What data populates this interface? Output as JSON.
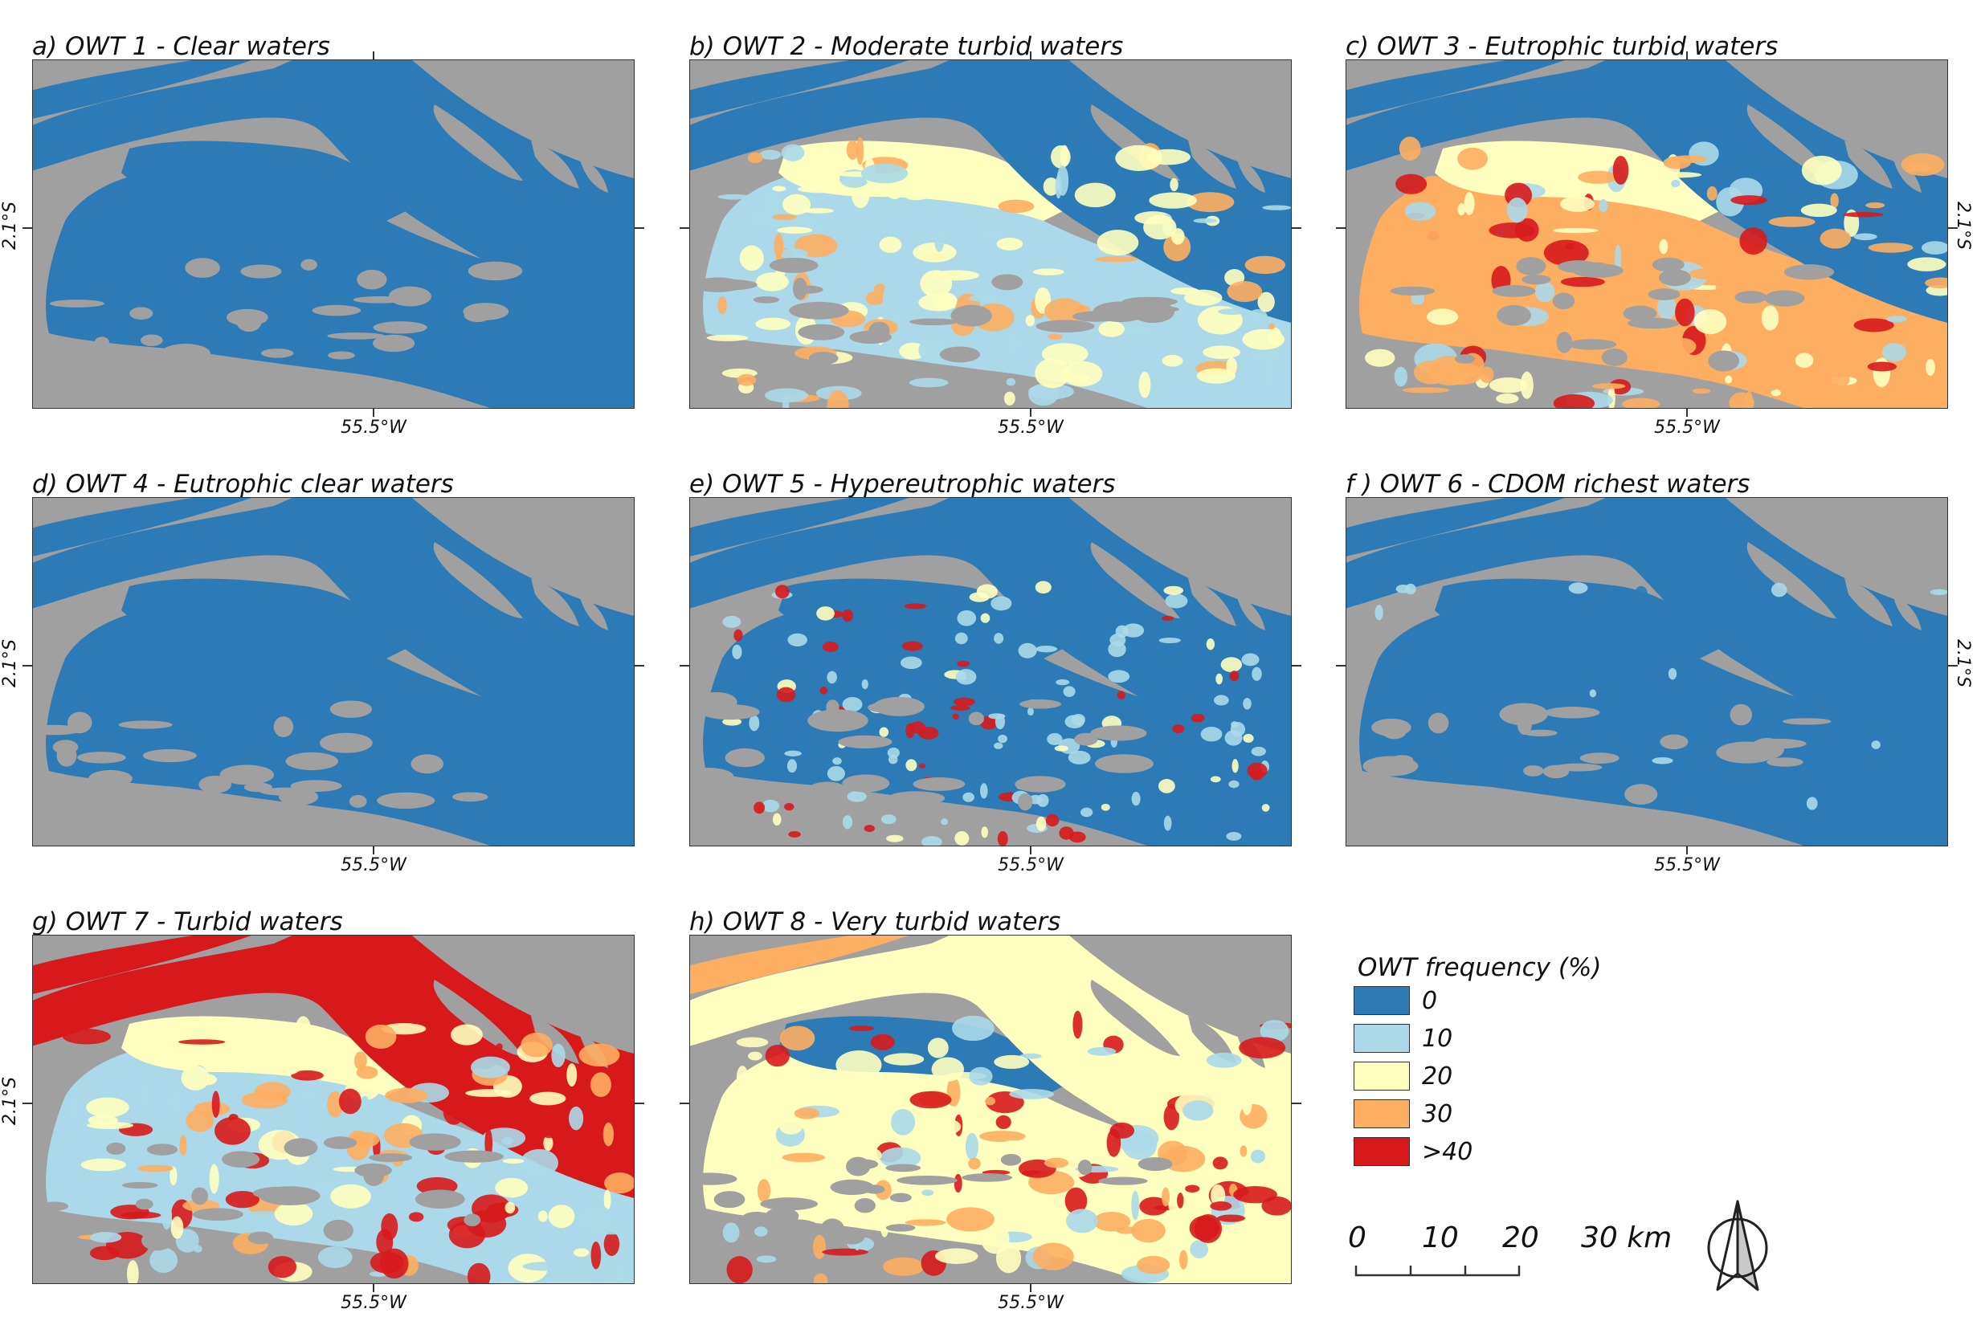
{
  "panels": [
    {
      "id": "a",
      "title": "a) OWT 1 - Clear waters",
      "scheme": "zero"
    },
    {
      "id": "b",
      "title": "b) OWT 2 - Moderate turbid waters",
      "scheme": "moderate"
    },
    {
      "id": "c",
      "title": "c) OWT 3 - Eutrophic turbid waters",
      "scheme": "eutrophic"
    },
    {
      "id": "d",
      "title": "d) OWT 4 - Eutrophic clear waters",
      "scheme": "zero"
    },
    {
      "id": "e",
      "title": "e) OWT 5 - Hypereutrophic waters",
      "scheme": "hyper"
    },
    {
      "id": "f",
      "title": "f ) OWT 6 - CDOM richest waters",
      "scheme": "cdom"
    },
    {
      "id": "g",
      "title": "g) OWT 7 - Turbid waters",
      "scheme": "turbid"
    },
    {
      "id": "h",
      "title": "h) OWT 8 - Very turbid waters",
      "scheme": "veryturbid"
    }
  ],
  "axes": {
    "longitude_label": "55.5°W",
    "latitude_label": "2.1°S"
  },
  "colors": {
    "land": "#a0a0a0",
    "c0": "#2c7bb6",
    "c10": "#abd9e9",
    "c20": "#ffffbf",
    "c30": "#fdae61",
    "c40": "#d7191c"
  },
  "legend": {
    "title": "OWT frequency (%)",
    "items": [
      {
        "label": "0",
        "color": "#2c7bb6"
      },
      {
        "label": "10",
        "color": "#abd9e9"
      },
      {
        "label": "20",
        "color": "#ffffbf"
      },
      {
        "label": "30",
        "color": "#fdae61"
      },
      {
        "label": ">40",
        "color": "#d7191c"
      }
    ]
  },
  "scale_bar": {
    "ticks": [
      "0",
      "10",
      "20",
      "30 km"
    ]
  },
  "north_arrow": {
    "icon": "north-arrow-icon"
  }
}
